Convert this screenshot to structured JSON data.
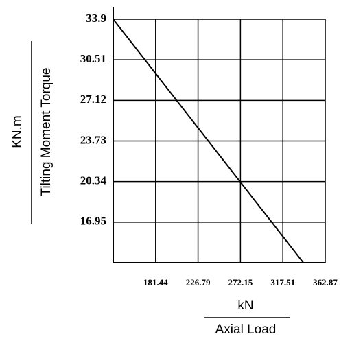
{
  "chart_data": {
    "type": "line",
    "x_label_unit": "kN",
    "x_label": "Axial Load",
    "y_label_unit": "KN.m",
    "y_label": "Tilting Moment Torque",
    "x": [
      136.08,
      339.5
    ],
    "series": [
      {
        "color": "#000000",
        "values": [
          33.9,
          13.56
        ]
      }
    ],
    "xlim": [
      136.08,
      362.87
    ],
    "xticks": [
      181.44,
      226.79,
      272.15,
      317.51,
      362.87
    ],
    "ylim": [
      13.56,
      33.9
    ],
    "yticks": [
      16.95,
      20.34,
      23.73,
      27.12,
      30.51,
      33.9
    ],
    "grid": true
  }
}
